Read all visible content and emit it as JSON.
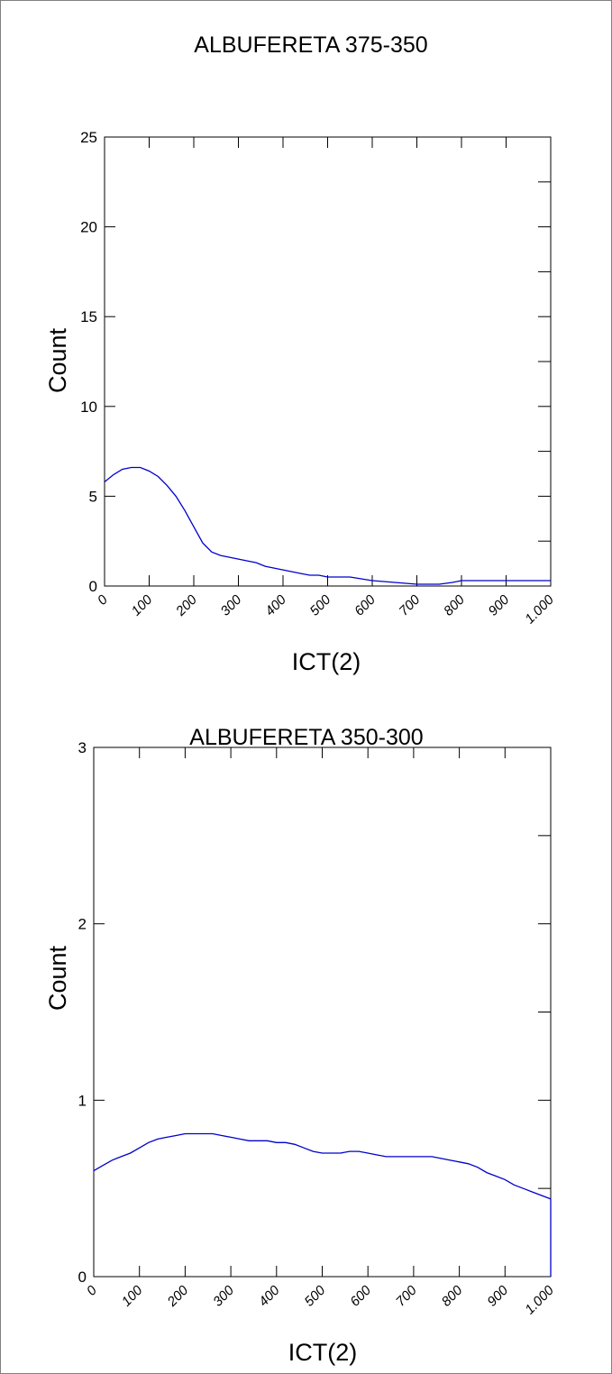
{
  "chart_data": [
    {
      "type": "line",
      "title": "ALBUFERETA 375-350",
      "xlabel": "ICT(2)",
      "ylabel": "Count",
      "xlim": [
        0,
        1000
      ],
      "ylim": [
        0,
        25
      ],
      "x_ticks": [
        "0",
        "100",
        "200",
        "300",
        "400",
        "500",
        "600",
        "700",
        "800",
        "900",
        "1.000"
      ],
      "y_ticks": [
        "0",
        "5",
        "10",
        "15",
        "20",
        "25"
      ],
      "grid": false,
      "line_color": "#0000cc",
      "x": [
        0,
        20,
        40,
        60,
        80,
        100,
        120,
        140,
        160,
        180,
        200,
        220,
        240,
        260,
        280,
        300,
        320,
        340,
        360,
        380,
        400,
        420,
        440,
        460,
        480,
        500,
        550,
        600,
        650,
        700,
        750,
        780,
        800,
        850,
        900,
        950,
        1000
      ],
      "values": [
        5.8,
        6.2,
        6.5,
        6.6,
        6.6,
        6.4,
        6.1,
        5.6,
        5.0,
        4.2,
        3.3,
        2.4,
        1.9,
        1.7,
        1.6,
        1.5,
        1.4,
        1.3,
        1.1,
        1.0,
        0.9,
        0.8,
        0.7,
        0.6,
        0.6,
        0.5,
        0.5,
        0.3,
        0.2,
        0.1,
        0.1,
        0.2,
        0.3,
        0.3,
        0.3,
        0.3,
        0.3
      ]
    },
    {
      "type": "line",
      "title": "ALBUFERETA 350-300",
      "xlabel": "ICT(2)",
      "ylabel": "Count",
      "xlim": [
        0,
        1000
      ],
      "ylim": [
        0,
        3
      ],
      "x_ticks": [
        "0",
        "100",
        "200",
        "300",
        "400",
        "500",
        "600",
        "700",
        "800",
        "900",
        "1.000"
      ],
      "y_ticks": [
        "0",
        "1",
        "2",
        "3"
      ],
      "grid": false,
      "line_color": "#0000cc",
      "x": [
        0,
        20,
        40,
        60,
        80,
        100,
        120,
        140,
        160,
        180,
        200,
        220,
        240,
        260,
        280,
        300,
        320,
        340,
        360,
        380,
        400,
        420,
        440,
        460,
        480,
        500,
        520,
        540,
        560,
        580,
        600,
        620,
        640,
        660,
        680,
        700,
        720,
        740,
        760,
        780,
        800,
        820,
        840,
        860,
        880,
        900,
        920,
        940,
        960,
        980,
        1000
      ],
      "values": [
        0.6,
        0.63,
        0.66,
        0.68,
        0.7,
        0.73,
        0.76,
        0.78,
        0.79,
        0.8,
        0.81,
        0.81,
        0.81,
        0.81,
        0.8,
        0.79,
        0.78,
        0.77,
        0.77,
        0.77,
        0.76,
        0.76,
        0.75,
        0.73,
        0.71,
        0.7,
        0.7,
        0.7,
        0.71,
        0.71,
        0.7,
        0.69,
        0.68,
        0.68,
        0.68,
        0.68,
        0.68,
        0.68,
        0.67,
        0.66,
        0.65,
        0.64,
        0.62,
        0.59,
        0.57,
        0.55,
        0.52,
        0.5,
        0.48,
        0.46,
        0.44
      ]
    }
  ]
}
